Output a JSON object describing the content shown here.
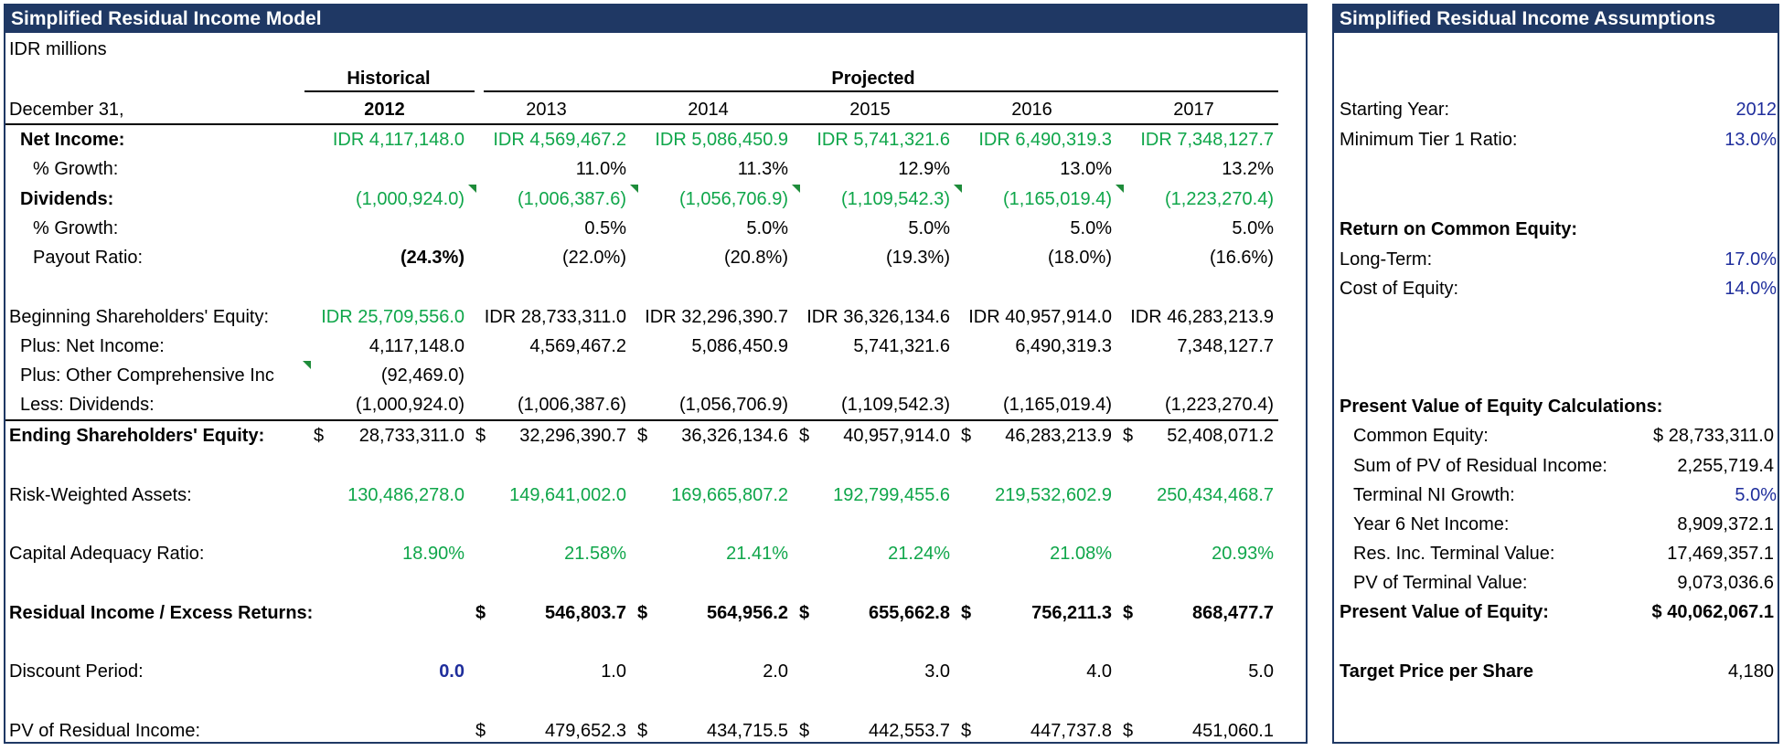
{
  "model": {
    "title": "Simplified Residual Income Model",
    "units": "IDR millions",
    "historical_label": "Historical",
    "projected_label": "Projected",
    "date_label": "December 31,",
    "years": [
      "2012",
      "2013",
      "2014",
      "2015",
      "2016",
      "2017"
    ],
    "rows": {
      "net_income": {
        "label": "Net Income:",
        "values": [
          "IDR 4,117,148.0",
          "IDR 4,569,467.2",
          "IDR 5,086,450.9",
          "IDR 5,741,321.6",
          "IDR 6,490,319.3",
          "IDR 7,348,127.7"
        ]
      },
      "ni_growth": {
        "label": "% Growth:",
        "values": [
          "",
          "11.0%",
          "11.3%",
          "12.9%",
          "13.0%",
          "13.2%"
        ]
      },
      "dividends": {
        "label": "Dividends:",
        "values": [
          "(1,000,924.0)",
          "(1,006,387.6)",
          "(1,056,706.9)",
          "(1,109,542.3)",
          "(1,165,019.4)",
          "(1,223,270.4)"
        ]
      },
      "div_growth": {
        "label": "% Growth:",
        "values": [
          "",
          "0.5%",
          "5.0%",
          "5.0%",
          "5.0%",
          "5.0%"
        ]
      },
      "payout": {
        "label": "Payout Ratio:",
        "values": [
          "(24.3%)",
          "(22.0%)",
          "(20.8%)",
          "(19.3%)",
          "(18.0%)",
          "(16.6%)"
        ]
      },
      "beg_equity": {
        "label": "Beginning Shareholders' Equity:",
        "values": [
          "IDR 25,709,556.0",
          "IDR 28,733,311.0",
          "IDR 32,296,390.7",
          "IDR 36,326,134.6",
          "IDR 40,957,914.0",
          "IDR 46,283,213.9"
        ]
      },
      "plus_ni": {
        "label": "Plus: Net Income:",
        "values": [
          "4,117,148.0",
          "4,569,467.2",
          "5,086,450.9",
          "5,741,321.6",
          "6,490,319.3",
          "7,348,127.7"
        ]
      },
      "plus_oci": {
        "label": "Plus: Other Comprehensive Inc",
        "values": [
          "(92,469.0)",
          "",
          "",
          "",
          "",
          ""
        ]
      },
      "less_div": {
        "label": "Less: Dividends:",
        "values": [
          "(1,000,924.0)",
          "(1,006,387.6)",
          "(1,056,706.9)",
          "(1,109,542.3)",
          "(1,165,019.4)",
          "(1,223,270.4)"
        ]
      },
      "end_equity": {
        "label": "Ending Shareholders' Equity:",
        "currency": "$",
        "values": [
          "28,733,311.0",
          "32,296,390.7",
          "36,326,134.6",
          "40,957,914.0",
          "46,283,213.9",
          "52,408,071.2"
        ]
      },
      "rwa": {
        "label": "Risk-Weighted Assets:",
        "values": [
          "130,486,278.0",
          "149,641,002.0",
          "169,665,807.2",
          "192,799,455.6",
          "219,532,602.9",
          "250,434,468.7"
        ]
      },
      "car": {
        "label": "Capital Adequacy Ratio:",
        "values": [
          "18.90%",
          "21.58%",
          "21.41%",
          "21.24%",
          "21.08%",
          "20.93%"
        ]
      },
      "residual": {
        "label": "Residual Income / Excess Returns:",
        "currency": "$",
        "values": [
          "",
          "546,803.7",
          "564,956.2",
          "655,662.8",
          "756,211.3",
          "868,477.7"
        ]
      },
      "discount": {
        "label": "Discount Period:",
        "values": [
          "0.0",
          "1.0",
          "2.0",
          "3.0",
          "4.0",
          "5.0"
        ]
      },
      "pv_residual": {
        "label": "PV of Residual Income:",
        "currency": "$",
        "values": [
          "",
          "479,652.3",
          "434,715.5",
          "442,553.7",
          "447,737.8",
          "451,060.1"
        ]
      }
    }
  },
  "assumptions": {
    "title": "Simplified Residual Income Assumptions",
    "starting_year": {
      "label": "Starting Year:",
      "value": "2012"
    },
    "min_tier1": {
      "label": "Minimum Tier 1 Ratio:",
      "value": "13.0%"
    },
    "roe_header": "Return on Common Equity:",
    "long_term": {
      "label": "Long-Term:",
      "value": "17.0%"
    },
    "cost_equity": {
      "label": "Cost of Equity:",
      "value": "14.0%"
    },
    "pv_header": "Present Value of Equity Calculations:",
    "common_equity": {
      "label": "Common Equity:",
      "value": "$ 28,733,311.0"
    },
    "sum_pv": {
      "label": "Sum of PV of Residual Income:",
      "value": "2,255,719.4"
    },
    "terminal_growth": {
      "label": "Terminal NI Growth:",
      "value": "5.0%"
    },
    "year6_ni": {
      "label": "Year 6 Net Income:",
      "value": "8,909,372.1"
    },
    "res_terminal": {
      "label": "Res. Inc. Terminal Value:",
      "value": "17,469,357.1"
    },
    "pv_terminal": {
      "label": "PV of Terminal Value:",
      "value": "9,073,036.6"
    },
    "pv_equity": {
      "label": "Present Value of Equity:",
      "value": "$ 40,062,067.1"
    },
    "target_price": {
      "label": "Target Price per Share",
      "value": "4,180"
    }
  },
  "colors": {
    "header_bg": "#1f3864",
    "input_green": "#0fa64a",
    "input_blue": "#1f2e9c"
  }
}
